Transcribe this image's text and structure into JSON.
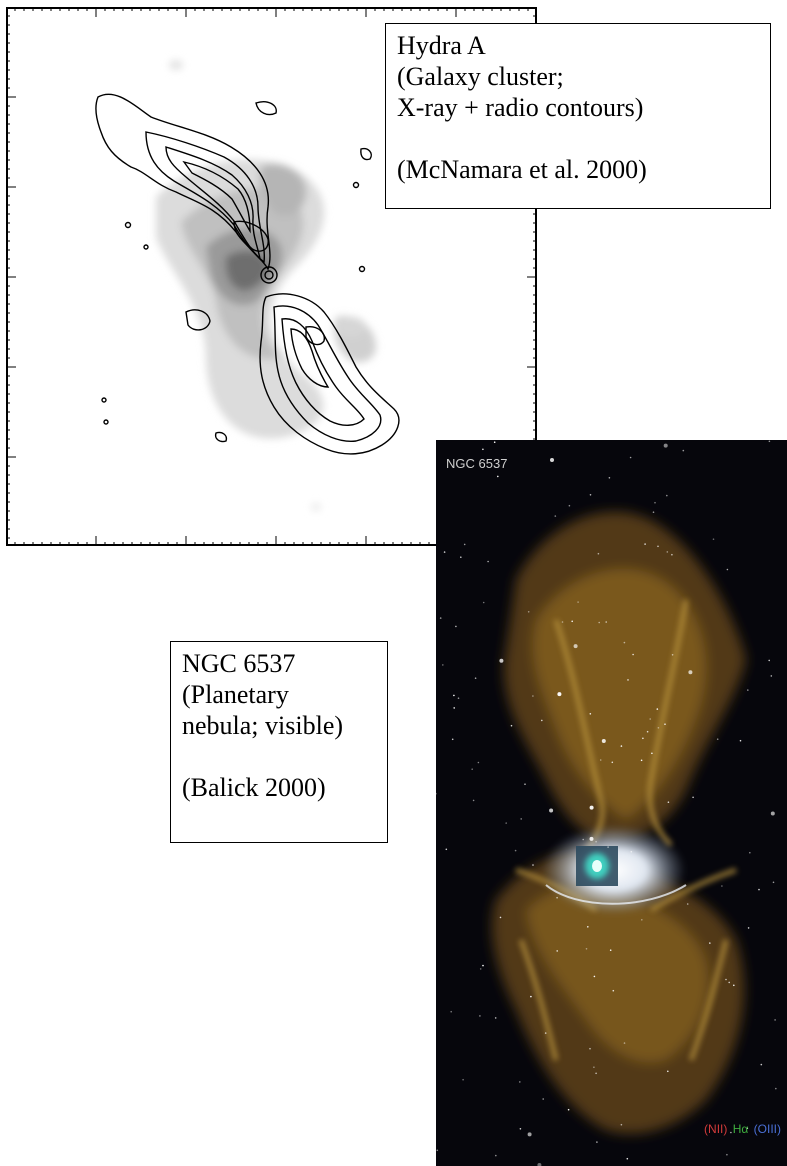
{
  "hydra_caption": {
    "title": "Hydra A",
    "line2": "(Galaxy cluster;",
    "line3": "X-ray + radio contours)",
    "reference": "(McNamara et al. 2000)"
  },
  "ngc_caption": {
    "title": "NGC 6537",
    "line2": "(Planetary",
    "line3": "nebula; visible)",
    "reference": "(Balick 2000)"
  },
  "ngc_image": {
    "label": "NGC 6537",
    "filters": [
      {
        "text": "(NII)",
        "color": "#d23a3a"
      },
      {
        "text": "Hα",
        "color": "#3fae3f"
      },
      {
        "text": "(OIII)",
        "color": "#4a6fd6"
      }
    ]
  }
}
